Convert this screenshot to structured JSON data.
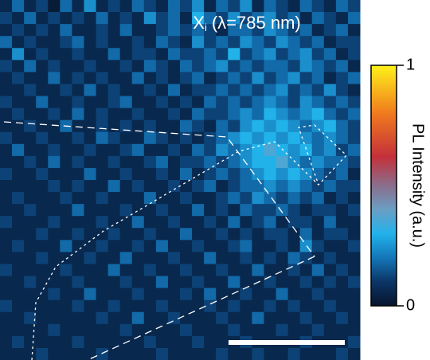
{
  "chart_data": {
    "type": "heatmap",
    "title": "X",
    "title_subscript": "i",
    "title_suffix": "(λ=785 nm)",
    "colorbar_label": "PL Intensity (a.u.)",
    "zlim": [
      0,
      1
    ],
    "zticks": [
      0,
      1
    ],
    "colorscale": [
      [
        0,
        "#07142b"
      ],
      [
        0.1,
        "#0b3566"
      ],
      [
        0.2,
        "#1477b8"
      ],
      [
        0.3,
        "#22b2ea"
      ],
      [
        0.4,
        "#6a9ec4"
      ],
      [
        0.5,
        "#8a6e8c"
      ],
      [
        0.62,
        "#c4303a"
      ],
      [
        0.8,
        "#f07a1e"
      ],
      [
        1,
        "#fff21a"
      ]
    ],
    "z": [
      [
        0.06,
        0.18,
        0.06,
        0.12,
        0.02,
        0.18,
        0.06,
        0.24,
        0.06,
        0.12,
        0.06,
        0.18,
        0.12,
        0.06,
        0.18,
        0.12,
        0.24,
        0.06,
        0.18,
        0.12,
        0.24,
        0.06,
        0.18,
        0.12,
        0.06,
        0.18,
        0.12,
        0.06,
        0.18,
        0.12
      ],
      [
        0.12,
        0.06,
        0.18,
        0.06,
        0.12,
        0.06,
        0.12,
        0.06,
        0.18,
        0.06,
        0.12,
        0.06,
        0.24,
        0.12,
        0.18,
        0.06,
        0.3,
        0.18,
        0.12,
        0.24,
        0.12,
        0.18,
        0.24,
        0.12,
        0.18,
        0.06,
        0.18,
        0.12,
        0.06,
        0.18
      ],
      [
        0.06,
        0.12,
        0.06,
        0.12,
        0.06,
        0.18,
        0.06,
        0.06,
        0.12,
        0.06,
        0.18,
        0.06,
        0.06,
        0.12,
        0.18,
        0.12,
        0.18,
        0.12,
        0.06,
        0.18,
        0.18,
        0.12,
        0.24,
        0.18,
        0.12,
        0.18,
        0.06,
        0.12,
        0.18,
        0.06
      ],
      [
        0.18,
        0.06,
        0.12,
        0.06,
        0.06,
        0.12,
        0.18,
        0.06,
        0.12,
        0.06,
        0.06,
        0.12,
        0.06,
        0.18,
        0.12,
        0.06,
        0.24,
        0.12,
        0.18,
        0.12,
        0.24,
        0.18,
        0.12,
        0.24,
        0.18,
        0.12,
        0.18,
        0.06,
        0.12,
        0.12
      ],
      [
        0.06,
        0.24,
        0.06,
        0.12,
        0.06,
        0.06,
        0.12,
        0.06,
        0.06,
        0.18,
        0.06,
        0.12,
        0.12,
        0.06,
        0.18,
        0.12,
        0.12,
        0.18,
        0.12,
        0.3,
        0.12,
        0.18,
        0.24,
        0.12,
        0.18,
        0.24,
        0.12,
        0.18,
        0.06,
        0.12
      ],
      [
        0.12,
        0.06,
        0.18,
        0.06,
        0.12,
        0.06,
        0.06,
        0.12,
        0.06,
        0.06,
        0.12,
        0.06,
        0.18,
        0.12,
        0.06,
        0.18,
        0.12,
        0.18,
        0.24,
        0.12,
        0.18,
        0.12,
        0.18,
        0.18,
        0.12,
        0.24,
        0.18,
        0.12,
        0.18,
        0.06
      ],
      [
        0.06,
        0.12,
        0.06,
        0.06,
        0.18,
        0.06,
        0.12,
        0.06,
        0.12,
        0.06,
        0.06,
        0.18,
        0.06,
        0.12,
        0.06,
        0.12,
        0.18,
        0.06,
        0.12,
        0.18,
        0.12,
        0.24,
        0.12,
        0.18,
        0.24,
        0.12,
        0.18,
        0.06,
        0.12,
        0.18
      ],
      [
        0.06,
        0.06,
        0.12,
        0.06,
        0.06,
        0.12,
        0.06,
        0.18,
        0.06,
        0.12,
        0.06,
        0.06,
        0.12,
        0.06,
        0.18,
        0.06,
        0.12,
        0.12,
        0.18,
        0.12,
        0.18,
        0.12,
        0.18,
        0.24,
        0.12,
        0.18,
        0.12,
        0.24,
        0.12,
        0.06
      ],
      [
        0.12,
        0.06,
        0.06,
        0.18,
        0.06,
        0.06,
        0.12,
        0.06,
        0.06,
        0.12,
        0.18,
        0.06,
        0.06,
        0.12,
        0.06,
        0.12,
        0.06,
        0.18,
        0.12,
        0.18,
        0.12,
        0.18,
        0.24,
        0.18,
        0.12,
        0.24,
        0.18,
        0.12,
        0.18,
        0.12
      ],
      [
        0.06,
        0.12,
        0.06,
        0.06,
        0.12,
        0.06,
        0.18,
        0.06,
        0.12,
        0.06,
        0.06,
        0.12,
        0.06,
        0.06,
        0.12,
        0.06,
        0.18,
        0.12,
        0.12,
        0.18,
        0.24,
        0.18,
        0.3,
        0.24,
        0.18,
        0.24,
        0.3,
        0.18,
        0.12,
        0.18
      ],
      [
        0.06,
        0.06,
        0.12,
        0.06,
        0.06,
        0.18,
        0.06,
        0.06,
        0.12,
        0.06,
        0.12,
        0.06,
        0.12,
        0.06,
        0.06,
        0.18,
        0.12,
        0.06,
        0.18,
        0.12,
        0.24,
        0.3,
        0.24,
        0.3,
        0.24,
        0.18,
        0.24,
        0.3,
        0.18,
        0.12
      ],
      [
        0.12,
        0.06,
        0.06,
        0.12,
        0.06,
        0.06,
        0.12,
        0.06,
        0.18,
        0.12,
        0.06,
        0.06,
        0.18,
        0.12,
        0.06,
        0.12,
        0.06,
        0.12,
        0.18,
        0.24,
        0.3,
        0.24,
        0.3,
        0.24,
        0.3,
        0.24,
        0.18,
        0.24,
        0.18,
        0.12
      ],
      [
        0.06,
        0.18,
        0.06,
        0.06,
        0.12,
        0.06,
        0.06,
        0.12,
        0.06,
        0.06,
        0.12,
        0.18,
        0.06,
        0.06,
        0.12,
        0.06,
        0.18,
        0.12,
        0.24,
        0.18,
        0.24,
        0.3,
        0.36,
        0.3,
        0.24,
        0.3,
        0.18,
        0.24,
        0.12,
        0.18
      ],
      [
        0.06,
        0.06,
        0.12,
        0.06,
        0.18,
        0.06,
        0.12,
        0.06,
        0.06,
        0.12,
        0.06,
        0.06,
        0.12,
        0.18,
        0.06,
        0.12,
        0.12,
        0.18,
        0.12,
        0.18,
        0.24,
        0.3,
        0.3,
        0.36,
        0.24,
        0.18,
        0.24,
        0.18,
        0.18,
        0.12
      ],
      [
        0.12,
        0.06,
        0.06,
        0.12,
        0.06,
        0.06,
        0.06,
        0.18,
        0.06,
        0.06,
        0.12,
        0.06,
        0.06,
        0.12,
        0.06,
        0.18,
        0.06,
        0.12,
        0.18,
        0.12,
        0.18,
        0.24,
        0.3,
        0.24,
        0.3,
        0.24,
        0.18,
        0.12,
        0.18,
        0.06
      ],
      [
        0.06,
        0.06,
        0.06,
        0.06,
        0.12,
        0.06,
        0.12,
        0.06,
        0.06,
        0.18,
        0.06,
        0.12,
        0.06,
        0.06,
        0.12,
        0.06,
        0.12,
        0.18,
        0.06,
        0.12,
        0.18,
        0.18,
        0.24,
        0.18,
        0.24,
        0.18,
        0.12,
        0.18,
        0.12,
        0.12
      ],
      [
        0.06,
        0.12,
        0.06,
        0.06,
        0.06,
        0.12,
        0.06,
        0.06,
        0.12,
        0.06,
        0.06,
        0.06,
        0.18,
        0.06,
        0.06,
        0.12,
        0.06,
        0.06,
        0.12,
        0.18,
        0.12,
        0.24,
        0.18,
        0.12,
        0.18,
        0.12,
        0.18,
        0.06,
        0.12,
        0.06
      ],
      [
        0.06,
        0.06,
        0.12,
        0.06,
        0.06,
        0.06,
        0.18,
        0.06,
        0.06,
        0.06,
        0.12,
        0.06,
        0.06,
        0.12,
        0.06,
        0.06,
        0.18,
        0.06,
        0.12,
        0.06,
        0.18,
        0.12,
        0.12,
        0.18,
        0.12,
        0.06,
        0.12,
        0.12,
        0.06,
        0.12
      ],
      [
        0.12,
        0.06,
        0.06,
        0.06,
        0.12,
        0.06,
        0.06,
        0.06,
        0.12,
        0.06,
        0.06,
        0.18,
        0.06,
        0.06,
        0.12,
        0.06,
        0.06,
        0.12,
        0.06,
        0.18,
        0.06,
        0.12,
        0.18,
        0.06,
        0.12,
        0.12,
        0.06,
        0.18,
        0.06,
        0.06
      ],
      [
        0.06,
        0.06,
        0.06,
        0.12,
        0.06,
        0.06,
        0.12,
        0.06,
        0.06,
        0.12,
        0.06,
        0.06,
        0.12,
        0.06,
        0.06,
        0.18,
        0.06,
        0.06,
        0.12,
        0.06,
        0.12,
        0.06,
        0.12,
        0.12,
        0.06,
        0.18,
        0.06,
        0.12,
        0.12,
        0.06
      ],
      [
        0.06,
        0.12,
        0.06,
        0.06,
        0.06,
        0.18,
        0.06,
        0.06,
        0.12,
        0.06,
        0.06,
        0.12,
        0.06,
        0.18,
        0.06,
        0.06,
        0.12,
        0.06,
        0.06,
        0.12,
        0.18,
        0.06,
        0.06,
        0.12,
        0.06,
        0.24,
        0.12,
        0.06,
        0.06,
        0.12
      ],
      [
        0.06,
        0.06,
        0.06,
        0.12,
        0.06,
        0.06,
        0.06,
        0.12,
        0.06,
        0.06,
        0.18,
        0.06,
        0.06,
        0.06,
        0.12,
        0.06,
        0.06,
        0.18,
        0.06,
        0.06,
        0.12,
        0.06,
        0.12,
        0.06,
        0.18,
        0.12,
        0.06,
        0.12,
        0.06,
        0.06
      ],
      [
        0.12,
        0.06,
        0.06,
        0.06,
        0.06,
        0.12,
        0.06,
        0.06,
        0.06,
        0.18,
        0.06,
        0.06,
        0.12,
        0.06,
        0.06,
        0.12,
        0.06,
        0.06,
        0.12,
        0.06,
        0.06,
        0.18,
        0.06,
        0.06,
        0.12,
        0.06,
        0.18,
        0.06,
        0.12,
        0.06
      ],
      [
        0.06,
        0.06,
        0.12,
        0.06,
        0.06,
        0.06,
        0.12,
        0.06,
        0.06,
        0.06,
        0.12,
        0.06,
        0.06,
        0.18,
        0.06,
        0.06,
        0.12,
        0.06,
        0.06,
        0.18,
        0.06,
        0.06,
        0.12,
        0.06,
        0.06,
        0.12,
        0.06,
        0.12,
        0.06,
        0.12
      ],
      [
        0.06,
        0.06,
        0.06,
        0.06,
        0.12,
        0.06,
        0.06,
        0.18,
        0.06,
        0.06,
        0.06,
        0.12,
        0.06,
        0.06,
        0.06,
        0.12,
        0.06,
        0.18,
        0.06,
        0.06,
        0.12,
        0.06,
        0.06,
        0.18,
        0.06,
        0.06,
        0.12,
        0.06,
        0.06,
        0.06
      ],
      [
        0.12,
        0.06,
        0.06,
        0.06,
        0.06,
        0.06,
        0.12,
        0.06,
        0.06,
        0.12,
        0.06,
        0.06,
        0.06,
        0.12,
        0.06,
        0.06,
        0.06,
        0.12,
        0.06,
        0.12,
        0.06,
        0.06,
        0.12,
        0.06,
        0.12,
        0.06,
        0.06,
        0.12,
        0.06,
        0.06
      ],
      [
        0.06,
        0.06,
        0.12,
        0.06,
        0.06,
        0.06,
        0.06,
        0.06,
        0.12,
        0.06,
        0.06,
        0.18,
        0.06,
        0.06,
        0.12,
        0.06,
        0.06,
        0.06,
        0.12,
        0.06,
        0.06,
        0.18,
        0.06,
        0.06,
        0.06,
        0.12,
        0.06,
        0.06,
        0.12,
        0.06
      ],
      [
        0.06,
        0.06,
        0.06,
        0.06,
        0.12,
        0.06,
        0.06,
        0.06,
        0.06,
        0.06,
        0.12,
        0.06,
        0.06,
        0.06,
        0.06,
        0.12,
        0.06,
        0.06,
        0.06,
        0.12,
        0.06,
        0.06,
        0.06,
        0.12,
        0.06,
        0.06,
        0.12,
        0.06,
        0.06,
        0.06
      ],
      [
        0.06,
        0.12,
        0.06,
        0.06,
        0.06,
        0.06,
        0.12,
        0.06,
        0.06,
        0.06,
        0.06,
        0.06,
        0.12,
        0.06,
        0.06,
        0.06,
        0.12,
        0.06,
        0.06,
        0.06,
        0.12,
        0.06,
        0.06,
        0.06,
        0.06,
        0.12,
        0.06,
        0.06,
        0.06,
        0.12
      ],
      [
        0.06,
        0.06,
        0.06,
        0.12,
        0.06,
        0.06,
        0.06,
        0.06,
        0.12,
        0.06,
        0.06,
        0.06,
        0.06,
        0.12,
        0.06,
        0.06,
        0.06,
        0.06,
        0.12,
        0.06,
        0.06,
        0.12,
        0.06,
        0.06,
        0.12,
        0.06,
        0.06,
        0.06,
        0.12,
        0.06
      ]
    ]
  }
}
